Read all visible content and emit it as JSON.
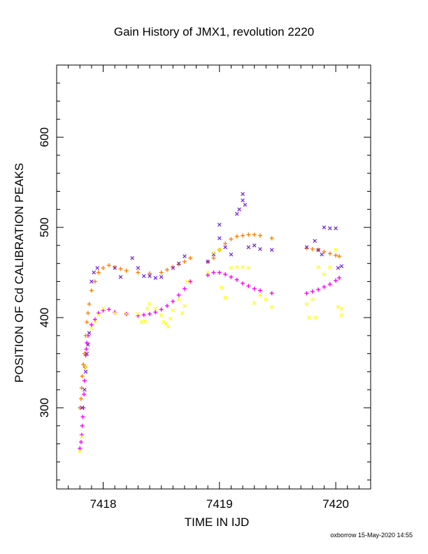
{
  "chart_data": {
    "type": "scatter",
    "title": "Gain History of JMX1, revolution 2220",
    "xlabel": "TIME IN IJD",
    "ylabel": "POSITION OF Cd CALIBRATION PEAKS",
    "xlim": [
      7417.6,
      7420.3
    ],
    "ylim": [
      210,
      680
    ],
    "x_ticks": [
      7418,
      7419,
      7420
    ],
    "x_tick_labels": [
      "7418",
      "7419",
      "7420"
    ],
    "y_ticks": [
      300,
      400,
      500,
      600
    ],
    "y_tick_labels": [
      "300",
      "400",
      "500",
      "600"
    ],
    "grid": false,
    "legend": "none",
    "series": [
      {
        "marker": "plus",
        "color": "#ff00ff",
        "points": [
          [
            7417.8,
            255
          ],
          [
            7417.81,
            262
          ],
          [
            7417.815,
            270
          ],
          [
            7417.82,
            280
          ],
          [
            7417.825,
            290
          ],
          [
            7417.83,
            300
          ],
          [
            7417.835,
            315
          ],
          [
            7417.84,
            330
          ],
          [
            7417.845,
            345
          ],
          [
            7417.85,
            358
          ],
          [
            7417.855,
            365
          ],
          [
            7417.86,
            372
          ],
          [
            7417.87,
            380
          ],
          [
            7417.9,
            392
          ],
          [
            7417.93,
            398
          ],
          [
            7417.96,
            405
          ],
          [
            7418.0,
            408
          ],
          [
            7418.05,
            409
          ],
          [
            7418.1,
            406
          ],
          [
            7418.2,
            404
          ],
          [
            7418.3,
            402
          ],
          [
            7418.35,
            403
          ],
          [
            7418.4,
            404
          ],
          [
            7418.45,
            406
          ],
          [
            7418.5,
            409
          ],
          [
            7418.55,
            413
          ],
          [
            7418.6,
            418
          ],
          [
            7418.65,
            425
          ],
          [
            7418.7,
            432
          ],
          [
            7418.75,
            440
          ],
          [
            7418.9,
            447
          ],
          [
            7418.95,
            450
          ],
          [
            7419.0,
            450
          ],
          [
            7419.05,
            448
          ],
          [
            7419.1,
            445
          ],
          [
            7419.15,
            442
          ],
          [
            7419.2,
            438
          ],
          [
            7419.25,
            435
          ],
          [
            7419.3,
            432
          ],
          [
            7419.35,
            430
          ],
          [
            7419.45,
            427
          ],
          [
            7419.75,
            427
          ],
          [
            7419.8,
            429
          ],
          [
            7419.85,
            431
          ],
          [
            7419.9,
            434
          ],
          [
            7419.95,
            437
          ],
          [
            7420.0,
            441
          ],
          [
            7420.03,
            444
          ]
        ]
      },
      {
        "marker": "plus",
        "color": "#ff8000",
        "points": [
          [
            7417.8,
            300
          ],
          [
            7417.81,
            310
          ],
          [
            7417.815,
            322
          ],
          [
            7417.82,
            335
          ],
          [
            7417.83,
            348
          ],
          [
            7417.84,
            360
          ],
          [
            7417.85,
            380
          ],
          [
            7417.86,
            395
          ],
          [
            7417.87,
            405
          ],
          [
            7417.88,
            415
          ],
          [
            7417.9,
            430
          ],
          [
            7417.93,
            440
          ],
          [
            7417.96,
            450
          ],
          [
            7418.0,
            455
          ],
          [
            7418.05,
            458
          ],
          [
            7418.1,
            456
          ],
          [
            7418.15,
            454
          ],
          [
            7418.2,
            452
          ],
          [
            7418.3,
            450
          ],
          [
            7418.4,
            449
          ],
          [
            7418.5,
            450
          ],
          [
            7418.55,
            453
          ],
          [
            7418.6,
            456
          ],
          [
            7418.65,
            459
          ],
          [
            7418.7,
            462
          ],
          [
            7418.75,
            466
          ],
          [
            7418.9,
            462
          ],
          [
            7418.95,
            466
          ],
          [
            7419.0,
            475
          ],
          [
            7419.05,
            482
          ],
          [
            7419.1,
            487
          ],
          [
            7419.15,
            490
          ],
          [
            7419.2,
            491
          ],
          [
            7419.25,
            492
          ],
          [
            7419.3,
            492
          ],
          [
            7419.35,
            491
          ],
          [
            7419.45,
            488
          ],
          [
            7419.75,
            477
          ],
          [
            7419.8,
            476
          ],
          [
            7419.85,
            475
          ],
          [
            7419.9,
            473
          ],
          [
            7419.95,
            471
          ],
          [
            7420.0,
            469
          ],
          [
            7420.03,
            468
          ]
        ]
      },
      {
        "marker": "x",
        "color": "#7020e0",
        "points": [
          [
            7417.82,
            300
          ],
          [
            7417.84,
            320
          ],
          [
            7417.85,
            340
          ],
          [
            7417.86,
            360
          ],
          [
            7417.87,
            370
          ],
          [
            7417.88,
            383
          ],
          [
            7417.9,
            440
          ],
          [
            7417.92,
            450
          ],
          [
            7417.95,
            455
          ],
          [
            7418.1,
            455
          ],
          [
            7418.15,
            445
          ],
          [
            7418.25,
            466
          ],
          [
            7418.3,
            455
          ],
          [
            7418.35,
            446
          ],
          [
            7418.4,
            446
          ],
          [
            7418.45,
            444
          ],
          [
            7418.5,
            445
          ],
          [
            7418.6,
            455
          ],
          [
            7418.65,
            460
          ],
          [
            7418.7,
            468
          ],
          [
            7418.9,
            462
          ],
          [
            7418.95,
            470
          ],
          [
            7419.0,
            488
          ],
          [
            7419.0,
            503
          ],
          [
            7419.05,
            478
          ],
          [
            7419.1,
            470
          ],
          [
            7419.15,
            515
          ],
          [
            7419.17,
            520
          ],
          [
            7419.2,
            530
          ],
          [
            7419.2,
            537
          ],
          [
            7419.22,
            525
          ],
          [
            7419.25,
            478
          ],
          [
            7419.3,
            480
          ],
          [
            7419.35,
            476
          ],
          [
            7419.45,
            475
          ],
          [
            7419.75,
            478
          ],
          [
            7419.82,
            485
          ],
          [
            7419.85,
            475
          ],
          [
            7419.88,
            470
          ],
          [
            7419.9,
            500
          ],
          [
            7419.95,
            499
          ],
          [
            7420.0,
            499
          ],
          [
            7420.02,
            455
          ],
          [
            7420.05,
            457
          ]
        ]
      },
      {
        "marker": "x",
        "color": "#ffff00",
        "points": [
          [
            7417.8,
            252
          ],
          [
            7417.82,
            268
          ],
          [
            7417.85,
            345
          ],
          [
            7417.9,
            388
          ],
          [
            7417.93,
            395
          ],
          [
            7417.96,
            403
          ],
          [
            7418.0,
            410
          ],
          [
            7418.1,
            405
          ],
          [
            7418.2,
            404
          ],
          [
            7418.3,
            404
          ],
          [
            7418.33,
            395
          ],
          [
            7418.36,
            396
          ],
          [
            7418.38,
            410
          ],
          [
            7418.4,
            415
          ],
          [
            7418.45,
            410
          ],
          [
            7418.5,
            403
          ],
          [
            7418.52,
            395
          ],
          [
            7418.54,
            393
          ],
          [
            7418.56,
            390
          ],
          [
            7418.58,
            399
          ],
          [
            7418.6,
            408
          ],
          [
            7418.65,
            420
          ],
          [
            7418.68,
            405
          ],
          [
            7418.7,
            413
          ],
          [
            7418.72,
            440
          ],
          [
            7418.9,
            450
          ],
          [
            7418.95,
            472
          ],
          [
            7419.0,
            475
          ],
          [
            7419.02,
            433
          ],
          [
            7419.05,
            422
          ],
          [
            7419.1,
            455
          ],
          [
            7419.15,
            456
          ],
          [
            7419.2,
            456
          ],
          [
            7419.25,
            455
          ],
          [
            7419.3,
            416
          ],
          [
            7419.35,
            425
          ],
          [
            7419.4,
            420
          ],
          [
            7419.45,
            412
          ],
          [
            7419.75,
            415
          ],
          [
            7419.77,
            400
          ],
          [
            7419.8,
            420
          ],
          [
            7419.83,
            400
          ],
          [
            7419.85,
            456
          ],
          [
            7419.9,
            448
          ],
          [
            7419.95,
            456
          ],
          [
            7420.0,
            475
          ],
          [
            7420.02,
            412
          ],
          [
            7420.05,
            410
          ],
          [
            7420.05,
            403
          ]
        ]
      }
    ]
  },
  "credit": "oxborrow 15-May-2020 14:55"
}
